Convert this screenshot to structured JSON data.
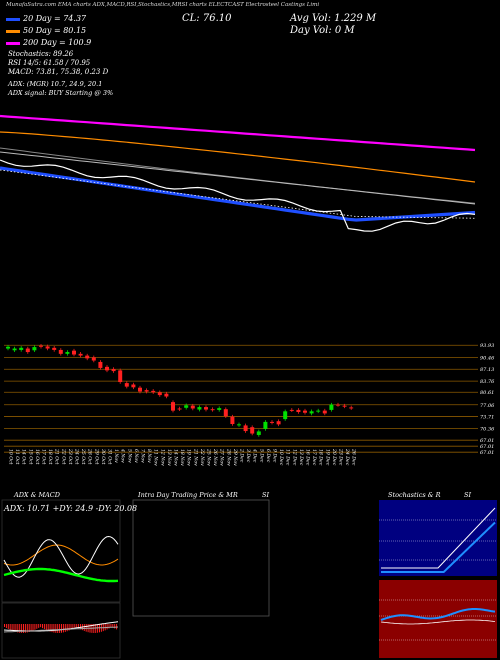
{
  "header": {
    "top_line": "MunafaSutra.com  EMA charts ADX,MACD,RSI,Stochastics,MRSI charts ELECTCAST  Electrosteel Castings Limi",
    "ma20": "20 Day = 74.37",
    "ma50": "50 Day = 80.15",
    "ma200": "200 Day = 100.9",
    "stochastics": "Stochastics: 89.26",
    "rsi": "RSI 14/5: 61.58 / 70.95",
    "macd": "MACD: 73.81, 75.38, 0.23 D",
    "close": "CL: 76.10",
    "avg_vol": "Avg Vol: 1.229 M",
    "day_vol": "Day Vol: 0   M",
    "adx_line": "ADX:                (MGR) 10.7, 24.9, 20.1",
    "adx_signal": "ADX  signal:                 BUY Starting @ 3%",
    "colors": {
      "ma20": "#1f4fff",
      "ma50": "#ff8c00",
      "ma200": "#ff00ff"
    }
  },
  "panels": {
    "adx_title": "ADX  & MACD",
    "adx_values": "ADX: 10.71 +DY: 24.9 -DY: 20.08",
    "intraday_title": "Intra  Day Trading Price  & MR",
    "intraday_si": "SI",
    "stoch_title": "Stochastics & R",
    "stoch_si": "SI"
  },
  "chart_data": {
    "type": "candlestick",
    "price_levels": [
      "93.93",
      "90.46",
      "87.13",
      "83.76",
      "80.61",
      "77.06",
      "73.71",
      "70.36",
      "67.01",
      "67.01",
      "67.01"
    ],
    "dates": [
      "10 Oct",
      "11 Oct",
      "14 Oct",
      "15 Oct",
      "16 Oct",
      "17 Oct",
      "18 Oct",
      "21 Oct",
      "22 Oct",
      "23 Oct",
      "24 Oct",
      "25 Oct",
      "28 Oct",
      "29 Oct",
      "30 Oct",
      "31 Oct",
      "1 Nov",
      "4 Nov",
      "5 Nov",
      "6 Nov",
      "7 Nov",
      "8 Nov",
      "11 Nov",
      "12 Nov",
      "13 Nov",
      "14 Nov",
      "18 Nov",
      "19 Nov",
      "21 Nov",
      "22 Nov",
      "25 Nov",
      "26 Nov",
      "27 Nov",
      "28 Nov",
      "29 Nov",
      "2 Dec",
      "3 Dec",
      "4 Dec",
      "5 Dec",
      "6 Dec",
      "9 Dec",
      "10 Dec",
      "11 Dec",
      "12 Dec",
      "13 Dec",
      "16 Dec",
      "17 Dec",
      "18 Dec",
      "19 Dec",
      "20 Dec",
      "23 Dec",
      "24 Dec",
      "26 Dec"
    ],
    "close": [
      93.5,
      93.0,
      93.2,
      92.0,
      93.4,
      93.5,
      93.0,
      92.6,
      91.5,
      92.0,
      91.3,
      91.0,
      90.2,
      89.6,
      87.5,
      86.8,
      86.6,
      83.5,
      82.2,
      82.0,
      80.8,
      80.8,
      80.6,
      79.8,
      79.4,
      75.4,
      75.8,
      76.9,
      76.0,
      76.4,
      75.7,
      75.6,
      76.1,
      73.8,
      71.6,
      71.5,
      69.6,
      68.9,
      69.5,
      72.2,
      72.0,
      71.5,
      75.2,
      75.5,
      75.0,
      74.8,
      75.2,
      75.4,
      74.6,
      77.1,
      77.0,
      76.6,
      76.1
    ],
    "open": [
      93.0,
      92.5,
      92.6,
      93.0,
      92.5,
      93.8,
      93.6,
      93.2,
      92.6,
      91.5,
      92.4,
      91.5,
      91.0,
      90.5,
      89.2,
      87.8,
      87.2,
      86.8,
      83.2,
      82.8,
      81.9,
      81.2,
      81.0,
      80.6,
      80.2,
      77.8,
      76.0,
      76.2,
      76.8,
      75.7,
      76.4,
      75.8,
      75.6,
      75.8,
      73.7,
      71.3,
      71.2,
      70.7,
      68.5,
      70.2,
      72.2,
      72.4,
      73.0,
      75.6,
      75.6,
      75.4,
      74.6,
      75.2,
      75.4,
      75.6,
      77.1,
      76.8,
      76.3
    ],
    "ma20_value": 74.37,
    "ma50_value": 80.15,
    "ma200_value": 100.9
  }
}
